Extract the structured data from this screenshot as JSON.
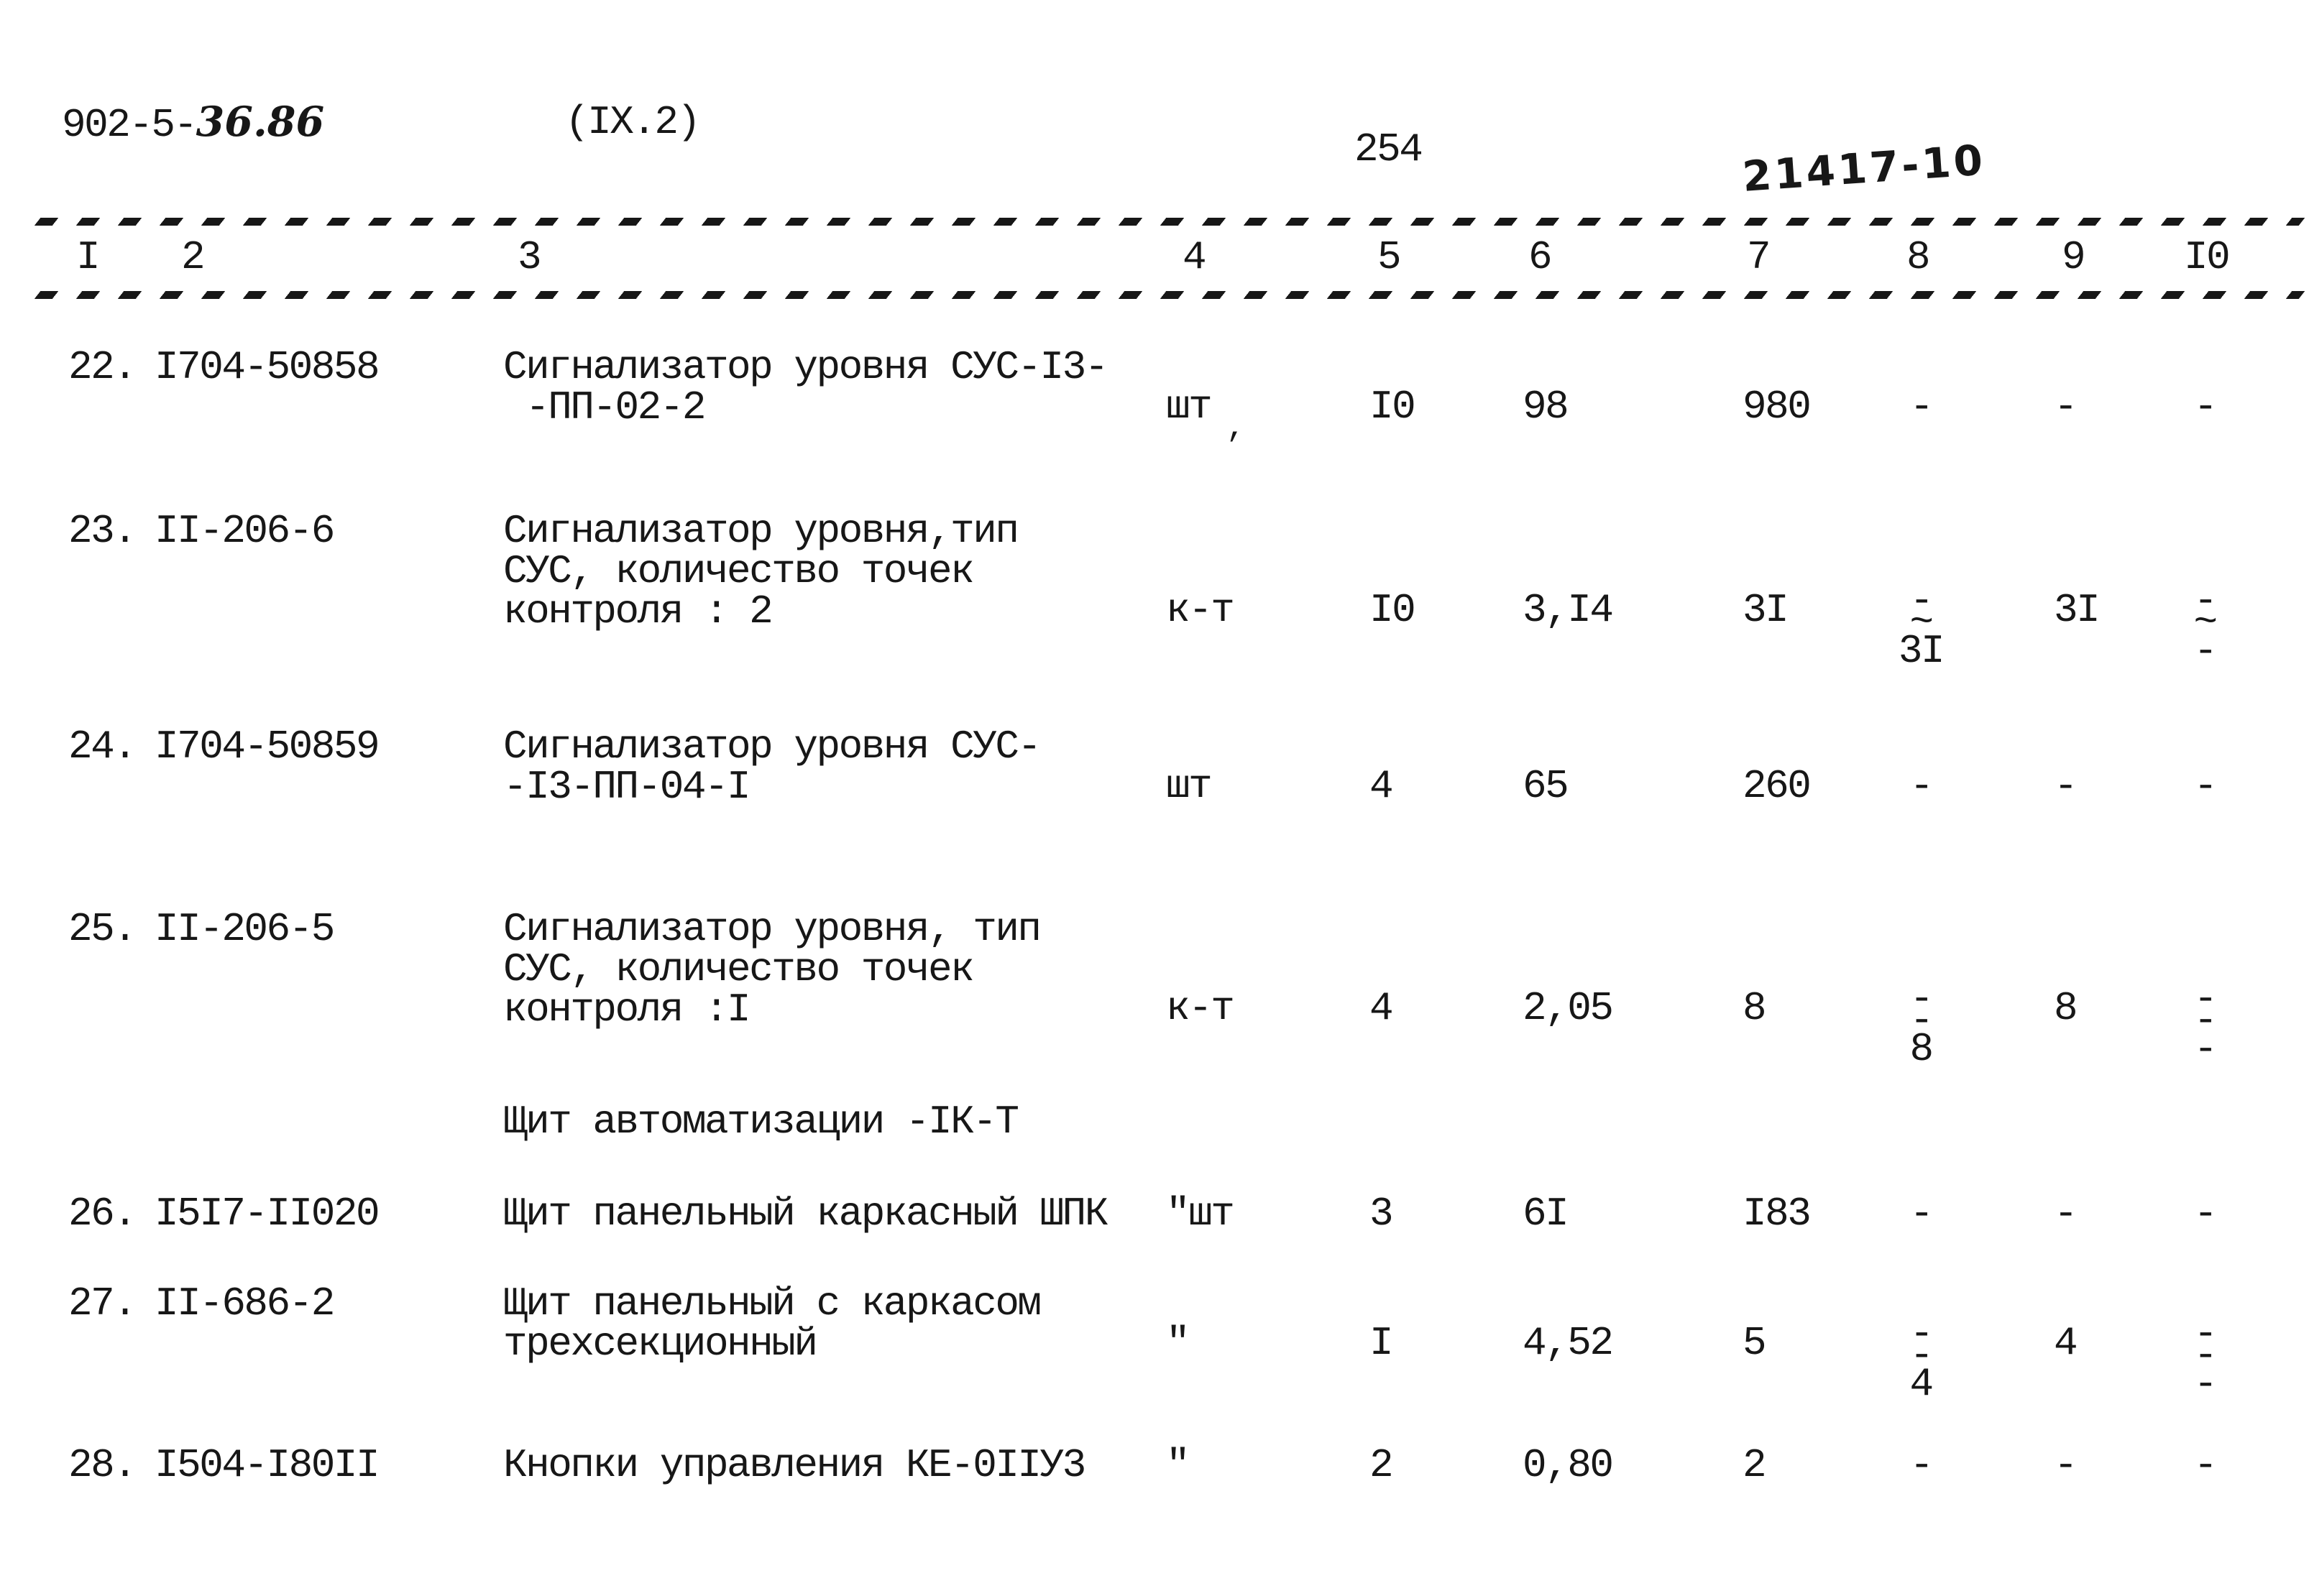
{
  "header": {
    "doc_number_typed": "902-5-",
    "doc_number_hand": "36.86",
    "section_ref": "(IX.2)",
    "page_number": "254",
    "stamp": "21417-10"
  },
  "artifacts": {
    "ink_mark": ","
  },
  "table": {
    "column_numbers": [
      "I",
      "2",
      "3",
      "4",
      "5",
      "6",
      "7",
      "8",
      "9",
      "I0"
    ],
    "rows": [
      {
        "type": "item",
        "num": "22.",
        "code": "I704-50858",
        "name_lines": [
          "Сигнализатор уровня СУС-I3-",
          " -ПП-02-2"
        ],
        "unit": "шт",
        "qty": "I0",
        "price": "98",
        "sum": "980",
        "c8": [
          "-"
        ],
        "c9": "-",
        "c10": [
          "-"
        ]
      },
      {
        "type": "item",
        "num": "23.",
        "code": "II-206-6",
        "name_lines": [
          "Сигнализатор уровня,тип",
          "СУС, количество точек",
          "контроля : 2"
        ],
        "unit": "к-т",
        "qty": "I0",
        "price": "3,I4",
        "sum": "3I",
        "c8": [
          "-",
          "~",
          "3I"
        ],
        "c9": "3I",
        "c10": [
          "-",
          "~",
          "-"
        ]
      },
      {
        "type": "item",
        "num": "24.",
        "code": "I704-50859",
        "name_lines": [
          "Сигнализатор уровня СУС-",
          "-I3-ПП-04-I"
        ],
        "unit": "шт",
        "qty": "4",
        "price": "65",
        "sum": "260",
        "c8": [
          "-"
        ],
        "c9": "-",
        "c10": [
          "-"
        ]
      },
      {
        "type": "item",
        "num": "25.",
        "code": "II-206-5",
        "name_lines": [
          "Сигнализатор уровня, тип",
          "СУС, количество точек",
          "контроля :I"
        ],
        "unit": "к-т",
        "qty": "4",
        "price": "2,05",
        "sum": "8",
        "c8": [
          "-",
          "-",
          "8"
        ],
        "c9": "8",
        "c10": [
          "-",
          "-",
          "-"
        ]
      },
      {
        "type": "section",
        "title": "Щит автоматизации -IК-Т"
      },
      {
        "type": "item",
        "num": "26.",
        "code": "I5I7-II020",
        "name_lines": [
          "Щит панельный каркасный ШПК"
        ],
        "unit": "\"шт",
        "qty": "3",
        "price": "6I",
        "sum": "I83",
        "c8": [
          "-"
        ],
        "c9": "-",
        "c10": [
          "-"
        ]
      },
      {
        "type": "item",
        "num": "27.",
        "code": "II-686-2",
        "name_lines": [
          "Щит панельный с каркасом",
          "трехсекционный"
        ],
        "unit": "\"",
        "qty": "I",
        "price": "4,52",
        "sum": "5",
        "c8": [
          "-",
          "-",
          "4"
        ],
        "c9": "4",
        "c10": [
          "-",
          "-",
          "-"
        ]
      },
      {
        "type": "item",
        "num": "28.",
        "code": "I504-I80II",
        "name_lines": [
          "Кнопки управления КЕ-0IIУ3"
        ],
        "unit": "\"",
        "qty": "2",
        "price": "0,80",
        "sum": "2",
        "c8": [
          "-"
        ],
        "c9": "-",
        "c10": [
          "-"
        ]
      }
    ]
  }
}
